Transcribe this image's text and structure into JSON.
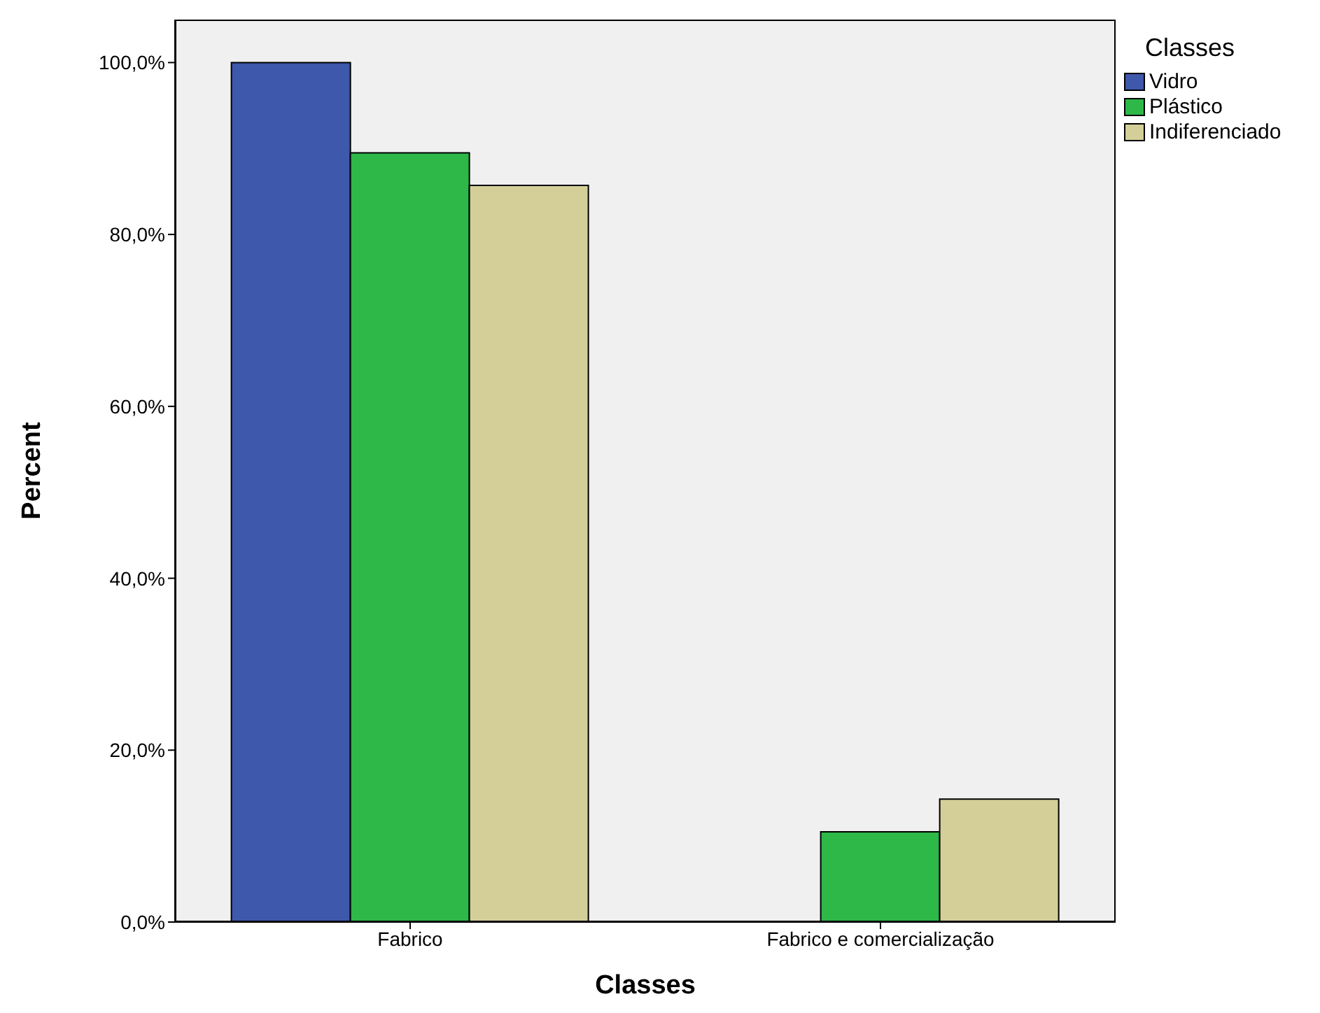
{
  "chart_data": {
    "type": "bar",
    "xlabel": "Classes",
    "ylabel": "Percent",
    "legend_title": "Classes",
    "legend": "top right",
    "categories": [
      "Fabrico",
      "Fabrico e comercialização"
    ],
    "series": [
      {
        "name": "Vidro",
        "color": "#3e58ac",
        "values": [
          100,
          0
        ]
      },
      {
        "name": "Plástico",
        "color": "#2eb848",
        "values": [
          89.5,
          10.5
        ]
      },
      {
        "name": "Indiferenciado",
        "color": "#d4cf98",
        "values": [
          85.7,
          14.3
        ]
      }
    ],
    "ylim": [
      0,
      105
    ],
    "yticks": [
      {
        "value": 0,
        "label": "0,0%"
      },
      {
        "value": 20,
        "label": "20,0%"
      },
      {
        "value": 40,
        "label": "40,0%"
      },
      {
        "value": 60,
        "label": "60,0%"
      },
      {
        "value": 80,
        "label": "80,0%"
      },
      {
        "value": 100,
        "label": "100,0%"
      }
    ]
  }
}
